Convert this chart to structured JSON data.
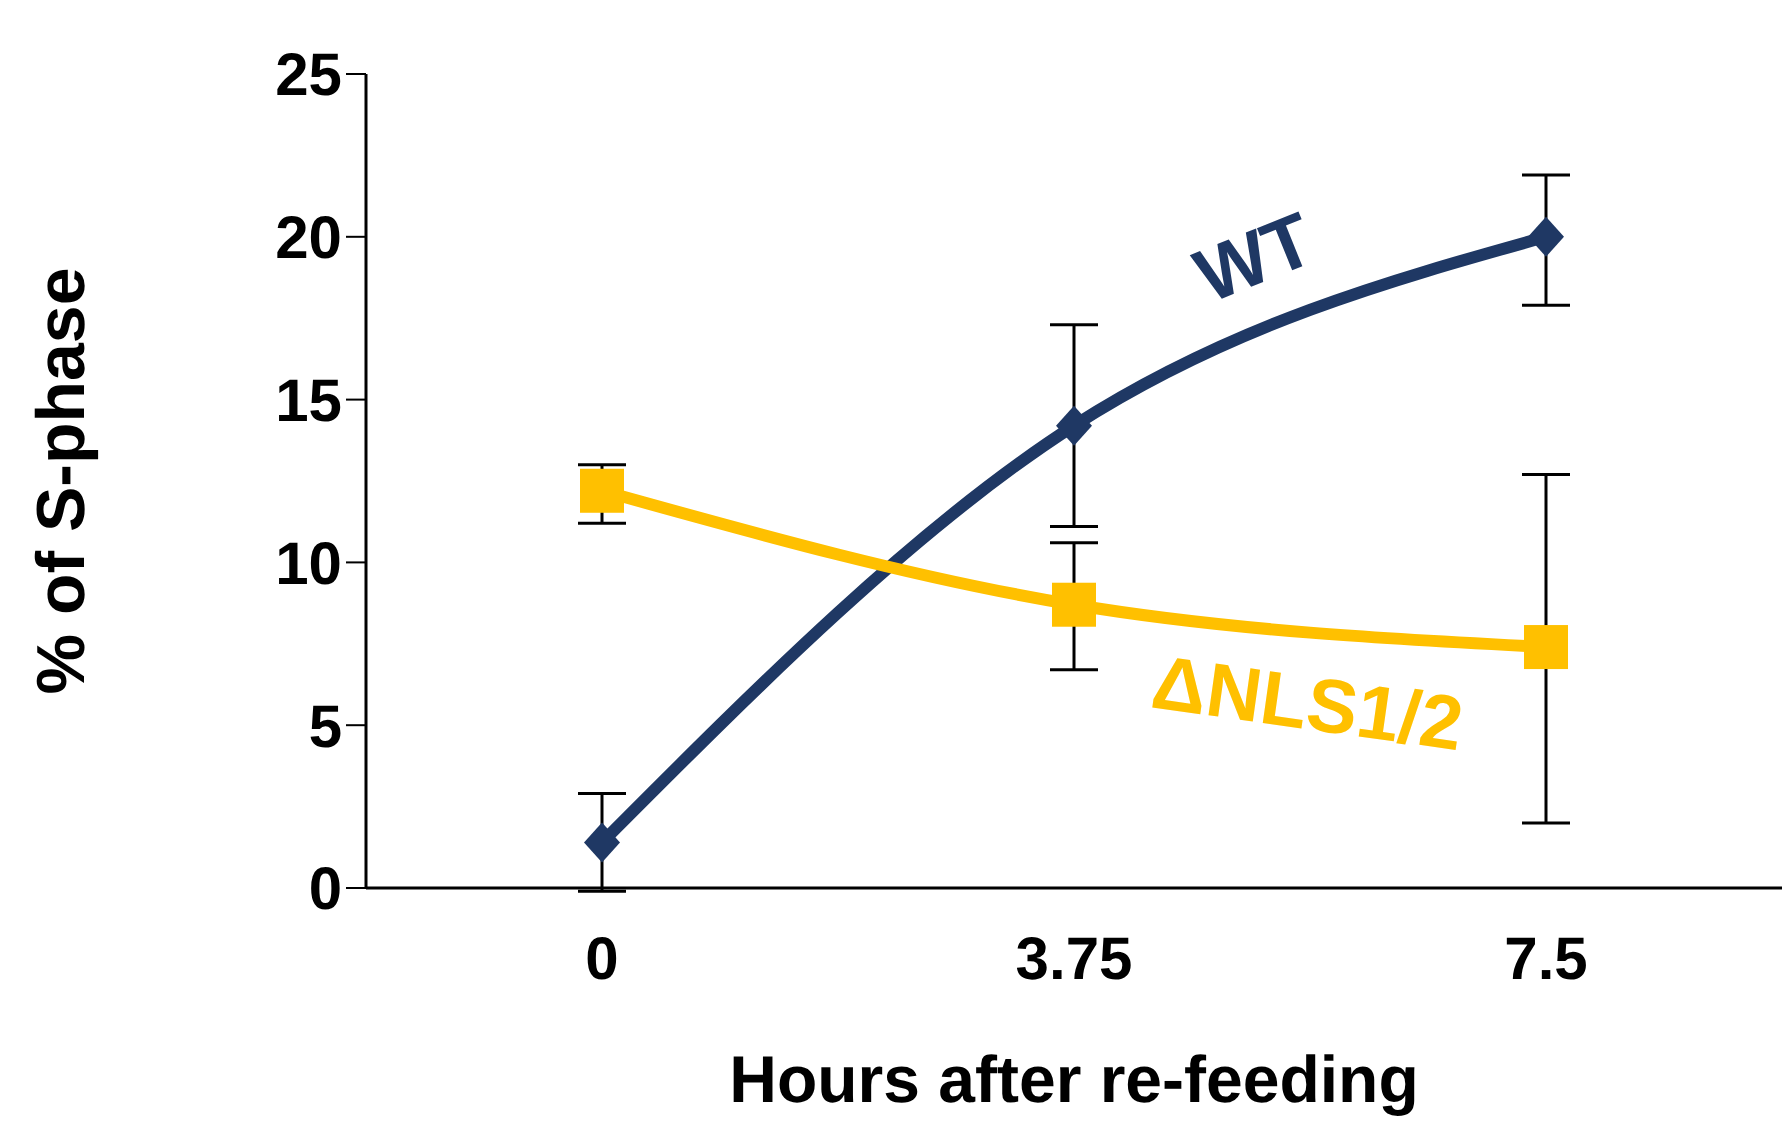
{
  "chart_data": {
    "type": "line",
    "xlabel": "Hours after re-feeding",
    "ylabel": "% of S-phase",
    "categories": [
      "0",
      "3.75",
      "7.5"
    ],
    "ylim": [
      0,
      25
    ],
    "yticks": [
      0,
      5,
      10,
      15,
      20,
      25
    ],
    "series": [
      {
        "name": "WT",
        "color": "#1f3864",
        "marker": "diamond",
        "values": [
          1.4,
          14.2,
          20.0
        ],
        "errors": [
          [
            -0.1,
            2.9
          ],
          [
            11.1,
            17.3
          ],
          [
            17.9,
            21.9
          ]
        ]
      },
      {
        "name": "ΔNLS1/2",
        "color": "#ffc000",
        "marker": "square",
        "values": [
          12.2,
          8.7,
          7.4
        ],
        "errors": [
          [
            11.2,
            13.0
          ],
          [
            6.7,
            10.6
          ],
          [
            2.0,
            12.7
          ]
        ]
      }
    ]
  }
}
